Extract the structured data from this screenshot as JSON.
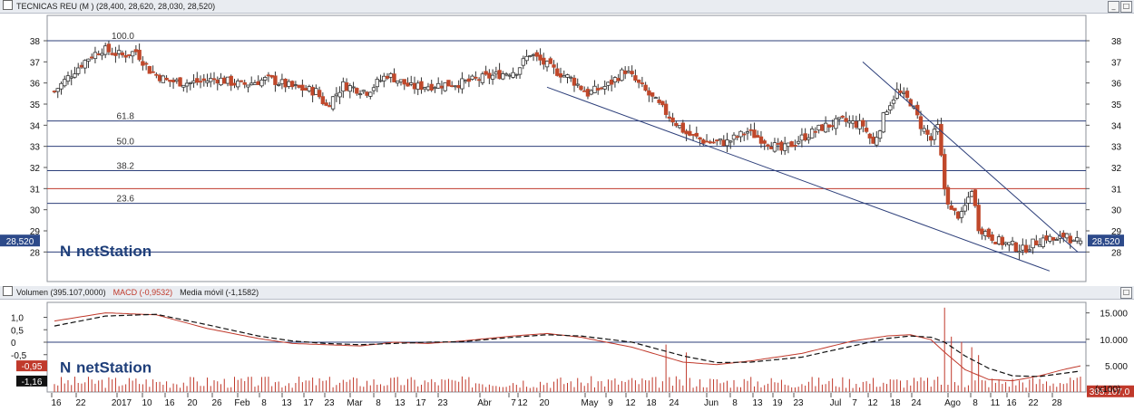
{
  "price_panel": {
    "title": "TECNICAS REU (M ) (28,400, 28,620, 28,030, 28,520)",
    "last_value": "28,520"
  },
  "indicator_panel": {
    "legend": [
      {
        "label": "Volumen (395.107,0000)",
        "color": "#c0392b"
      },
      {
        "label": "MACD (-0,9532)",
        "color": "#c0392b"
      },
      {
        "label": "Media móvil (-1,1582)",
        "color": "#111111"
      }
    ],
    "macd_value": "-0,95",
    "signal_value": "-1,16",
    "volume_value": "395.107,0",
    "volume_scale": "(x100)"
  },
  "logo": {
    "mark": "N",
    "text": "netStation"
  },
  "colors": {
    "up": "#ffffff",
    "down": "#c0482b",
    "wick": "#333333",
    "line": "#2d3f7a",
    "red_line": "#c0392b",
    "volume": "#c0392b"
  },
  "chart_data": [
    {
      "type": "candlestick",
      "title": "TECNICAS REU (M )",
      "ylim": [
        26.6,
        39.2
      ],
      "yticks": [
        28,
        29,
        30,
        31,
        32,
        33,
        34,
        35,
        36,
        37,
        38
      ],
      "x_labels": [
        "16",
        "22",
        "2017",
        "10",
        "16",
        "20",
        "26",
        "Feb",
        "8",
        "13",
        "17",
        "23",
        "Mar",
        "8",
        "13",
        "17",
        "23",
        "Abr",
        "7",
        "12",
        "20",
        "May",
        "9",
        "12",
        "18",
        "24",
        "Jun",
        "8",
        "13",
        "19",
        "23",
        "Jul",
        "7",
        "12",
        "18",
        "24",
        "Ago",
        "8",
        "11",
        "16",
        "22",
        "28"
      ],
      "fibonacci_levels": [
        {
          "label": "100.0",
          "value": 38.0
        },
        {
          "label": "61.8",
          "value": 34.2
        },
        {
          "label": "50.0",
          "value": 33.0
        },
        {
          "label": "38.2",
          "value": 31.85
        },
        {
          "label": "23.6",
          "value": 30.3
        },
        {
          "label": "",
          "value": 28.0
        }
      ],
      "horizontal_red_line": 31.0,
      "last_ohlc": {
        "open": 28.4,
        "high": 28.62,
        "low": 28.03,
        "close": 28.52
      },
      "close_path": [
        [
          0,
          35.6
        ],
        [
          6,
          36.6
        ],
        [
          10,
          37.2
        ],
        [
          14,
          37.6
        ],
        [
          20,
          37.3
        ],
        [
          24,
          37.5
        ],
        [
          28,
          36.6
        ],
        [
          33,
          36.1
        ],
        [
          40,
          36.0
        ],
        [
          48,
          36.2
        ],
        [
          55,
          35.9
        ],
        [
          63,
          36.2
        ],
        [
          70,
          35.8
        ],
        [
          77,
          35.6
        ],
        [
          80,
          34.9
        ],
        [
          85,
          35.9
        ],
        [
          92,
          35.6
        ],
        [
          98,
          36.4
        ],
        [
          105,
          35.8
        ],
        [
          112,
          35.9
        ],
        [
          120,
          36.0
        ],
        [
          128,
          36.3
        ],
        [
          136,
          36.6
        ],
        [
          140,
          37.4
        ],
        [
          146,
          36.7
        ],
        [
          152,
          36.2
        ],
        [
          157,
          35.5
        ],
        [
          163,
          35.9
        ],
        [
          168,
          36.6
        ],
        [
          174,
          35.6
        ],
        [
          180,
          34.6
        ],
        [
          186,
          33.6
        ],
        [
          192,
          33.2
        ],
        [
          198,
          33.2
        ],
        [
          204,
          33.7
        ],
        [
          210,
          33.2
        ],
        [
          214,
          32.8
        ],
        [
          220,
          33.4
        ],
        [
          226,
          33.9
        ],
        [
          232,
          34.2
        ],
        [
          238,
          34.0
        ],
        [
          241,
          33.1
        ],
        [
          245,
          34.8
        ],
        [
          248,
          35.6
        ],
        [
          252,
          35.1
        ],
        [
          255,
          34.0
        ],
        [
          258,
          33.3
        ],
        [
          260,
          33.9
        ],
        [
          262,
          31.0
        ],
        [
          264,
          29.9
        ],
        [
          267,
          29.7
        ],
        [
          270,
          31.0
        ],
        [
          272,
          29.2
        ],
        [
          275,
          28.8
        ],
        [
          278,
          28.5
        ],
        [
          282,
          28.3
        ],
        [
          285,
          28.1
        ],
        [
          288,
          28.4
        ],
        [
          292,
          28.7
        ],
        [
          295,
          28.5
        ],
        [
          298,
          28.9
        ],
        [
          300,
          28.4
        ],
        [
          302,
          28.52
        ]
      ]
    },
    {
      "type": "line",
      "title": "MACD",
      "ylim": [
        -2.0,
        1.6
      ],
      "yticks": [
        1.0,
        0.5,
        0.0,
        -0.5,
        -1.0
      ],
      "series": [
        {
          "name": "MACD",
          "color": "#c0392b",
          "dash": false,
          "points": [
            [
              0,
              0.85
            ],
            [
              15,
              1.18
            ],
            [
              30,
              1.1
            ],
            [
              45,
              0.55
            ],
            [
              60,
              0.15
            ],
            [
              70,
              -0.05
            ],
            [
              80,
              -0.1
            ],
            [
              90,
              -0.15
            ],
            [
              100,
              0.0
            ],
            [
              110,
              -0.05
            ],
            [
              120,
              0.05
            ],
            [
              135,
              0.25
            ],
            [
              145,
              0.35
            ],
            [
              155,
              0.2
            ],
            [
              170,
              -0.2
            ],
            [
              185,
              -0.8
            ],
            [
              195,
              -0.9
            ],
            [
              205,
              -0.75
            ],
            [
              220,
              -0.45
            ],
            [
              235,
              0.05
            ],
            [
              245,
              0.25
            ],
            [
              252,
              0.3
            ],
            [
              258,
              0.1
            ],
            [
              262,
              -0.4
            ],
            [
              268,
              -1.1
            ],
            [
              275,
              -1.5
            ],
            [
              282,
              -1.55
            ],
            [
              290,
              -1.35
            ],
            [
              297,
              -1.1
            ],
            [
              302,
              -0.95
            ]
          ]
        },
        {
          "name": "Media móvil",
          "color": "#111111",
          "dash": true,
          "points": [
            [
              0,
              0.65
            ],
            [
              15,
              1.05
            ],
            [
              30,
              1.12
            ],
            [
              45,
              0.7
            ],
            [
              60,
              0.25
            ],
            [
              70,
              0.05
            ],
            [
              80,
              -0.05
            ],
            [
              90,
              -0.1
            ],
            [
              100,
              -0.05
            ],
            [
              110,
              0.0
            ],
            [
              120,
              0.02
            ],
            [
              135,
              0.2
            ],
            [
              145,
              0.3
            ],
            [
              155,
              0.25
            ],
            [
              170,
              0.0
            ],
            [
              185,
              -0.55
            ],
            [
              195,
              -0.82
            ],
            [
              205,
              -0.8
            ],
            [
              220,
              -0.6
            ],
            [
              235,
              -0.15
            ],
            [
              245,
              0.15
            ],
            [
              252,
              0.25
            ],
            [
              258,
              0.2
            ],
            [
              262,
              0.0
            ],
            [
              268,
              -0.55
            ],
            [
              275,
              -1.05
            ],
            [
              282,
              -1.35
            ],
            [
              290,
              -1.38
            ],
            [
              297,
              -1.25
            ],
            [
              302,
              -1.16
            ]
          ]
        }
      ]
    },
    {
      "type": "bar",
      "title": "Volumen",
      "ylim": [
        0,
        17000
      ],
      "yticks": [
        15000,
        10000,
        5000
      ],
      "spikes": [
        [
          180,
          9000
        ],
        [
          186,
          7500
        ],
        [
          262,
          16000
        ],
        [
          264,
          10500
        ],
        [
          267,
          9500
        ],
        [
          270,
          8500
        ],
        [
          272,
          7000
        ]
      ],
      "base_level": 2500
    }
  ]
}
